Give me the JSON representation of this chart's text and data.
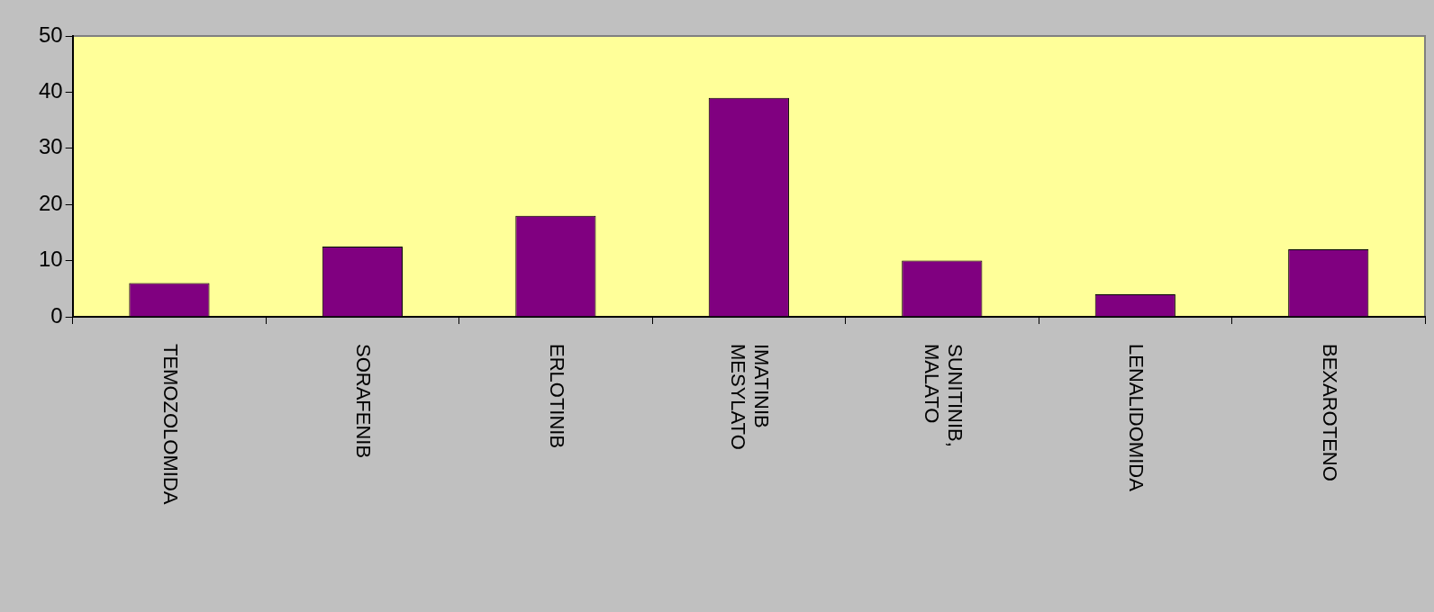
{
  "chart_data": {
    "type": "bar",
    "categories": [
      "TEMOZOLOMIDA",
      "SORAFENIB",
      "ERLOTINIB",
      "IMATINIB MESYLATO",
      "SUNITINIB, MALATO",
      "LENALIDOMIDA",
      "BEXAROTENO"
    ],
    "values": [
      6,
      12.5,
      18,
      39,
      10,
      4,
      12
    ],
    "color": "#800080",
    "ylim": [
      0,
      50
    ],
    "yticks": [
      0,
      10,
      20,
      30,
      40,
      50
    ]
  }
}
